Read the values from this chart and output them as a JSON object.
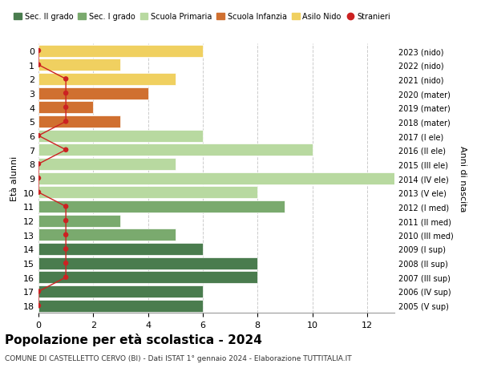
{
  "ages": [
    18,
    17,
    16,
    15,
    14,
    13,
    12,
    11,
    10,
    9,
    8,
    7,
    6,
    5,
    4,
    3,
    2,
    1,
    0
  ],
  "years": [
    "2005 (V sup)",
    "2006 (IV sup)",
    "2007 (III sup)",
    "2008 (II sup)",
    "2009 (I sup)",
    "2010 (III med)",
    "2011 (II med)",
    "2012 (I med)",
    "2013 (V ele)",
    "2014 (IV ele)",
    "2015 (III ele)",
    "2016 (II ele)",
    "2017 (I ele)",
    "2018 (mater)",
    "2019 (mater)",
    "2020 (mater)",
    "2021 (nido)",
    "2022 (nido)",
    "2023 (nido)"
  ],
  "bar_values": [
    6,
    6,
    8,
    8,
    6,
    5,
    3,
    9,
    8,
    13,
    5,
    10,
    6,
    3,
    2,
    4,
    5,
    3,
    6
  ],
  "bar_colors": [
    "#4a7c4e",
    "#4a7c4e",
    "#4a7c4e",
    "#4a7c4e",
    "#4a7c4e",
    "#7aaa6e",
    "#7aaa6e",
    "#7aaa6e",
    "#b8d9a0",
    "#b8d9a0",
    "#b8d9a0",
    "#b8d9a0",
    "#b8d9a0",
    "#d07030",
    "#d07030",
    "#d07030",
    "#f0d060",
    "#f0d060",
    "#f0d060"
  ],
  "stranieri_x": [
    0,
    0,
    1,
    1,
    1,
    1,
    1,
    1,
    0,
    0,
    0,
    1,
    0,
    1,
    1,
    1,
    1,
    0,
    0
  ],
  "title": "Popolazione per età scolastica - 2024",
  "subtitle": "COMUNE DI CASTELLETTO CERVO (BI) - Dati ISTAT 1° gennaio 2024 - Elaborazione TUTTITALIA.IT",
  "ylabel_left": "Età alunni",
  "ylabel_right": "Anni di nascita",
  "xlim": [
    0,
    13
  ],
  "xticks": [
    0,
    2,
    4,
    6,
    8,
    10,
    12
  ],
  "legend_labels": [
    "Sec. II grado",
    "Sec. I grado",
    "Scuola Primaria",
    "Scuola Infanzia",
    "Asilo Nido",
    "Stranieri"
  ],
  "legend_colors": [
    "#4a7c4e",
    "#7aaa6e",
    "#b8d9a0",
    "#d07030",
    "#f0d060",
    "#cc2222"
  ],
  "color_stranieri": "#cc2222",
  "grid_color": "#cccccc",
  "bar_height": 0.85,
  "title_fontsize": 11,
  "subtitle_fontsize": 6.5
}
